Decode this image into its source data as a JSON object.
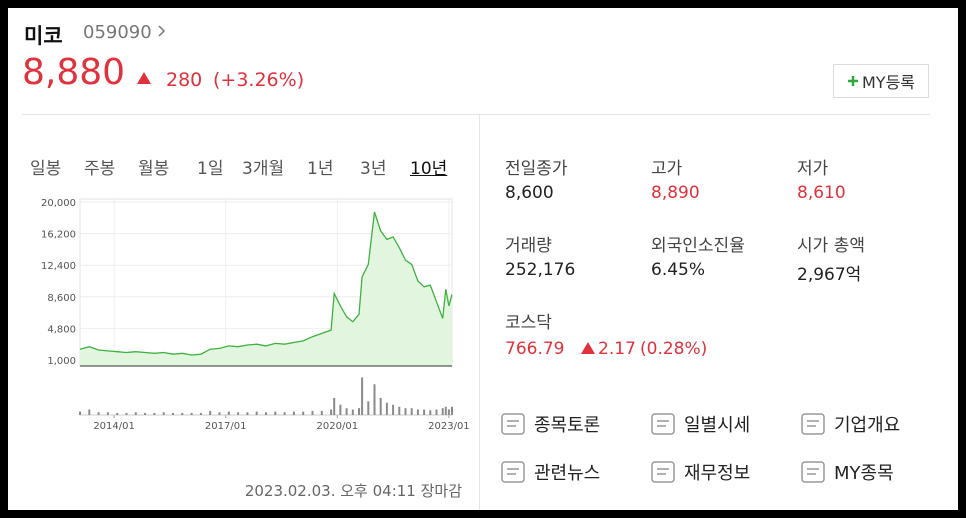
{
  "header": {
    "name": "미코",
    "code": "059090",
    "price": "8,880",
    "change": "280",
    "change_pct": "(+3.26%)",
    "my_button": "MY등록"
  },
  "tabs": [
    "일봉",
    "주봉",
    "월봉",
    "1일",
    "3개월",
    "1년",
    "3년",
    "10년"
  ],
  "active_tab": 7,
  "chart_data": {
    "type": "line",
    "color": "#3fb13f",
    "fill": "#e2f6df",
    "volume_color": "#8a8a8a",
    "x": [
      "2013/02",
      "2013/05",
      "2013/08",
      "2013/11",
      "2014/02",
      "2014/05",
      "2014/08",
      "2014/11",
      "2015/02",
      "2015/05",
      "2015/08",
      "2015/11",
      "2016/02",
      "2016/05",
      "2016/08",
      "2016/11",
      "2017/02",
      "2017/05",
      "2017/08",
      "2017/11",
      "2018/02",
      "2018/05",
      "2018/08",
      "2018/11",
      "2019/02",
      "2019/05",
      "2019/08",
      "2019/11",
      "2019/12",
      "2020/02",
      "2020/04",
      "2020/06",
      "2020/08",
      "2020/09",
      "2020/11",
      "2021/01",
      "2021/03",
      "2021/05",
      "2021/07",
      "2021/09",
      "2021/11",
      "2022/01",
      "2022/03",
      "2022/05",
      "2022/07",
      "2022/09",
      "2022/11",
      "2022/12",
      "2023/01",
      "2023/02"
    ],
    "values": [
      2300,
      2600,
      2200,
      2100,
      2000,
      1900,
      2000,
      1900,
      1800,
      1900,
      1700,
      1800,
      1600,
      1700,
      2300,
      2400,
      2700,
      2600,
      2800,
      2900,
      2700,
      3000,
      2900,
      3100,
      3300,
      3800,
      4200,
      4600,
      9000,
      7500,
      6200,
      5600,
      6500,
      11000,
      12500,
      18800,
      16500,
      15500,
      15800,
      14500,
      13000,
      12500,
      10500,
      9800,
      10000,
      8000,
      6000,
      9500,
      7500,
      8880
    ],
    "volume": [
      5,
      8,
      4,
      4,
      3,
      3,
      4,
      3,
      3,
      4,
      3,
      3,
      3,
      3,
      6,
      4,
      5,
      4,
      4,
      5,
      4,
      5,
      4,
      5,
      5,
      6,
      6,
      8,
      25,
      15,
      10,
      8,
      10,
      55,
      20,
      45,
      25,
      18,
      15,
      12,
      10,
      10,
      8,
      8,
      7,
      8,
      10,
      12,
      8,
      12
    ],
    "volume_lim": [
      0,
      60
    ],
    "xlim": [
      "2013/02",
      "2023/02"
    ],
    "xticks": [
      "2014/01",
      "2017/01",
      "2020/01",
      "2023/01"
    ],
    "ylim": [
      1000,
      20000
    ],
    "yticks": [
      {
        "value": 20000,
        "label": "20,000"
      },
      {
        "value": 16200,
        "label": "16,200"
      },
      {
        "value": 12400,
        "label": "12,400"
      },
      {
        "value": 8600,
        "label": "8,600"
      },
      {
        "value": 4800,
        "label": "4,800"
      },
      {
        "value": 1000,
        "label": "1,000"
      }
    ],
    "grid": true
  },
  "timestamp": "2023.02.03. 오후 04:11 장마감",
  "stats": [
    {
      "label": "전일종가",
      "value": "8,600",
      "color": "#222"
    },
    {
      "label": "고가",
      "value": "8,890",
      "color": "#e0323c"
    },
    {
      "label": "저가",
      "value": "8,610",
      "color": "#e0323c"
    },
    {
      "label": "거래량",
      "value": "252,176",
      "color": "#222"
    },
    {
      "label": "외국인소진율",
      "value": "6.45%",
      "color": "#222"
    },
    {
      "label": "시가 총액",
      "value": "2,967억",
      "color": "#222"
    }
  ],
  "index": {
    "label": "코스닥",
    "value": "766.79",
    "change": "2.17",
    "change_pct": "(0.28%)"
  },
  "links": [
    "종목토론",
    "일별시세",
    "기업개요",
    "관련뉴스",
    "재무정보",
    "MY종목"
  ]
}
